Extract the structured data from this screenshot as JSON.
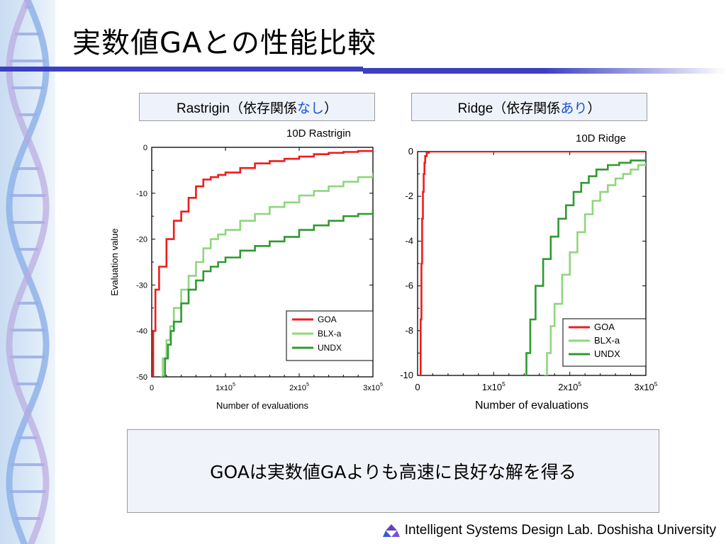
{
  "slide": {
    "title": "実数値GAとの性能比較",
    "label_left_prefix": "Rastrigin（依存関係",
    "label_left_highlight": "なし",
    "label_left_suffix": "）",
    "label_right_prefix": "Ridge（依存関係",
    "label_right_highlight": "あり",
    "label_right_suffix": "）",
    "conclusion": "GOAは実数値GAよりも高速に良好な解を得る",
    "footer": "Intelligent Systems Design Lab. Doshisha University",
    "highlight_color": "#1a4fd6",
    "rule_color": "#3b3fc4"
  },
  "chart_data": [
    {
      "type": "line",
      "title": "10D Rastrigin",
      "xlabel": "Number of evaluations",
      "ylabel": "Evaluation value",
      "xlim": [
        0,
        300000
      ],
      "ylim": [
        -50,
        0
      ],
      "xticks": [
        0,
        100000,
        200000,
        300000
      ],
      "xtick_labels": [
        {
          "base": "0",
          "exp": ""
        },
        {
          "base": "1x10",
          "exp": "5"
        },
        {
          "base": "2x10",
          "exp": "5"
        },
        {
          "base": "3x10",
          "exp": "5"
        }
      ],
      "yticks": [
        0,
        -10,
        -20,
        -30,
        -40,
        -50
      ],
      "ytick_labels": [
        "0",
        "-10",
        "-20",
        "-30",
        "-40",
        "-50"
      ],
      "legend": "bottom-right",
      "series": [
        {
          "name": "GOA",
          "color": "#ee1c1c",
          "x": [
            1000,
            2000,
            5000,
            10000,
            20000,
            30000,
            40000,
            50000,
            60000,
            70000,
            80000,
            90000,
            100000,
            120000,
            140000,
            160000,
            180000,
            200000,
            220000,
            240000,
            260000,
            280000,
            300000
          ],
          "y": [
            -50,
            -40,
            -31,
            -26,
            -20,
            -16,
            -14,
            -11,
            -8.5,
            -7,
            -6.5,
            -6,
            -5.5,
            -4.5,
            -3.5,
            -3,
            -2.5,
            -2,
            -1.5,
            -1.2,
            -1,
            -0.8,
            -0.5
          ]
        },
        {
          "name": "BLX-a",
          "color": "#8fd67e",
          "x": [
            12000,
            15000,
            20000,
            25000,
            30000,
            40000,
            50000,
            60000,
            70000,
            80000,
            90000,
            100000,
            120000,
            140000,
            160000,
            180000,
            200000,
            220000,
            240000,
            260000,
            280000,
            300000
          ],
          "y": [
            -50,
            -46,
            -42,
            -39,
            -35,
            -31,
            -28,
            -25,
            -22,
            -20,
            -19,
            -18,
            -16,
            -14.5,
            -13,
            -12,
            -10.5,
            -9.5,
            -8.5,
            -7.5,
            -6.5,
            -5.5
          ]
        },
        {
          "name": "UNDX",
          "color": "#2f9a2f",
          "x": [
            14000,
            18000,
            22000,
            26000,
            30000,
            40000,
            50000,
            60000,
            70000,
            80000,
            90000,
            100000,
            120000,
            140000,
            160000,
            180000,
            200000,
            220000,
            240000,
            260000,
            280000,
            300000
          ],
          "y": [
            -50,
            -46,
            -43,
            -40,
            -38,
            -34,
            -31,
            -29,
            -27,
            -26,
            -25,
            -24,
            -22.5,
            -21.5,
            -20.5,
            -19.5,
            -18,
            -17,
            -16,
            -15,
            -14.5,
            -13.5
          ]
        }
      ]
    },
    {
      "type": "line",
      "title": "10D Ridge",
      "xlabel": "Number of evaluations",
      "ylabel": "",
      "xlim": [
        0,
        300000
      ],
      "ylim": [
        -10,
        0
      ],
      "xticks": [
        0,
        100000,
        200000,
        300000
      ],
      "xtick_labels": [
        {
          "base": "0",
          "exp": ""
        },
        {
          "base": "1x10",
          "exp": "5"
        },
        {
          "base": "2x10",
          "exp": "5"
        },
        {
          "base": "3x10",
          "exp": "5"
        }
      ],
      "yticks": [
        0,
        -2,
        -4,
        -6,
        -8,
        -10
      ],
      "ytick_labels": [
        "0",
        "-2",
        "-4",
        "-6",
        "-8",
        "-10"
      ],
      "legend": "bottom-right",
      "series": [
        {
          "name": "GOA",
          "color": "#ee1c1c",
          "x": [
            3000,
            4000,
            5000,
            6000,
            7000,
            8000,
            9000,
            10000,
            12000,
            15000,
            300000
          ],
          "y": [
            -10,
            -7.5,
            -5,
            -3,
            -1.8,
            -1,
            -0.5,
            -0.2,
            -0.05,
            0,
            0
          ]
        },
        {
          "name": "BLX-a",
          "color": "#8fd67e",
          "x": [
            166000,
            170000,
            175000,
            180000,
            190000,
            200000,
            210000,
            220000,
            230000,
            240000,
            250000,
            260000,
            270000,
            280000,
            290000,
            300000
          ],
          "y": [
            -10,
            -9,
            -7.8,
            -6.8,
            -5.5,
            -4.5,
            -3.6,
            -2.8,
            -2.2,
            -1.8,
            -1.5,
            -1.2,
            -1,
            -0.8,
            -0.6,
            -0.5
          ]
        },
        {
          "name": "UNDX",
          "color": "#2f9a2f",
          "x": [
            140000,
            143000,
            148000,
            155000,
            165000,
            175000,
            185000,
            195000,
            205000,
            215000,
            225000,
            235000,
            250000,
            265000,
            280000,
            300000
          ],
          "y": [
            -10,
            -9,
            -7.5,
            -6,
            -4.8,
            -3.8,
            -3,
            -2.4,
            -1.8,
            -1.4,
            -1.1,
            -0.8,
            -0.6,
            -0.5,
            -0.4,
            -0.2
          ]
        }
      ]
    }
  ]
}
